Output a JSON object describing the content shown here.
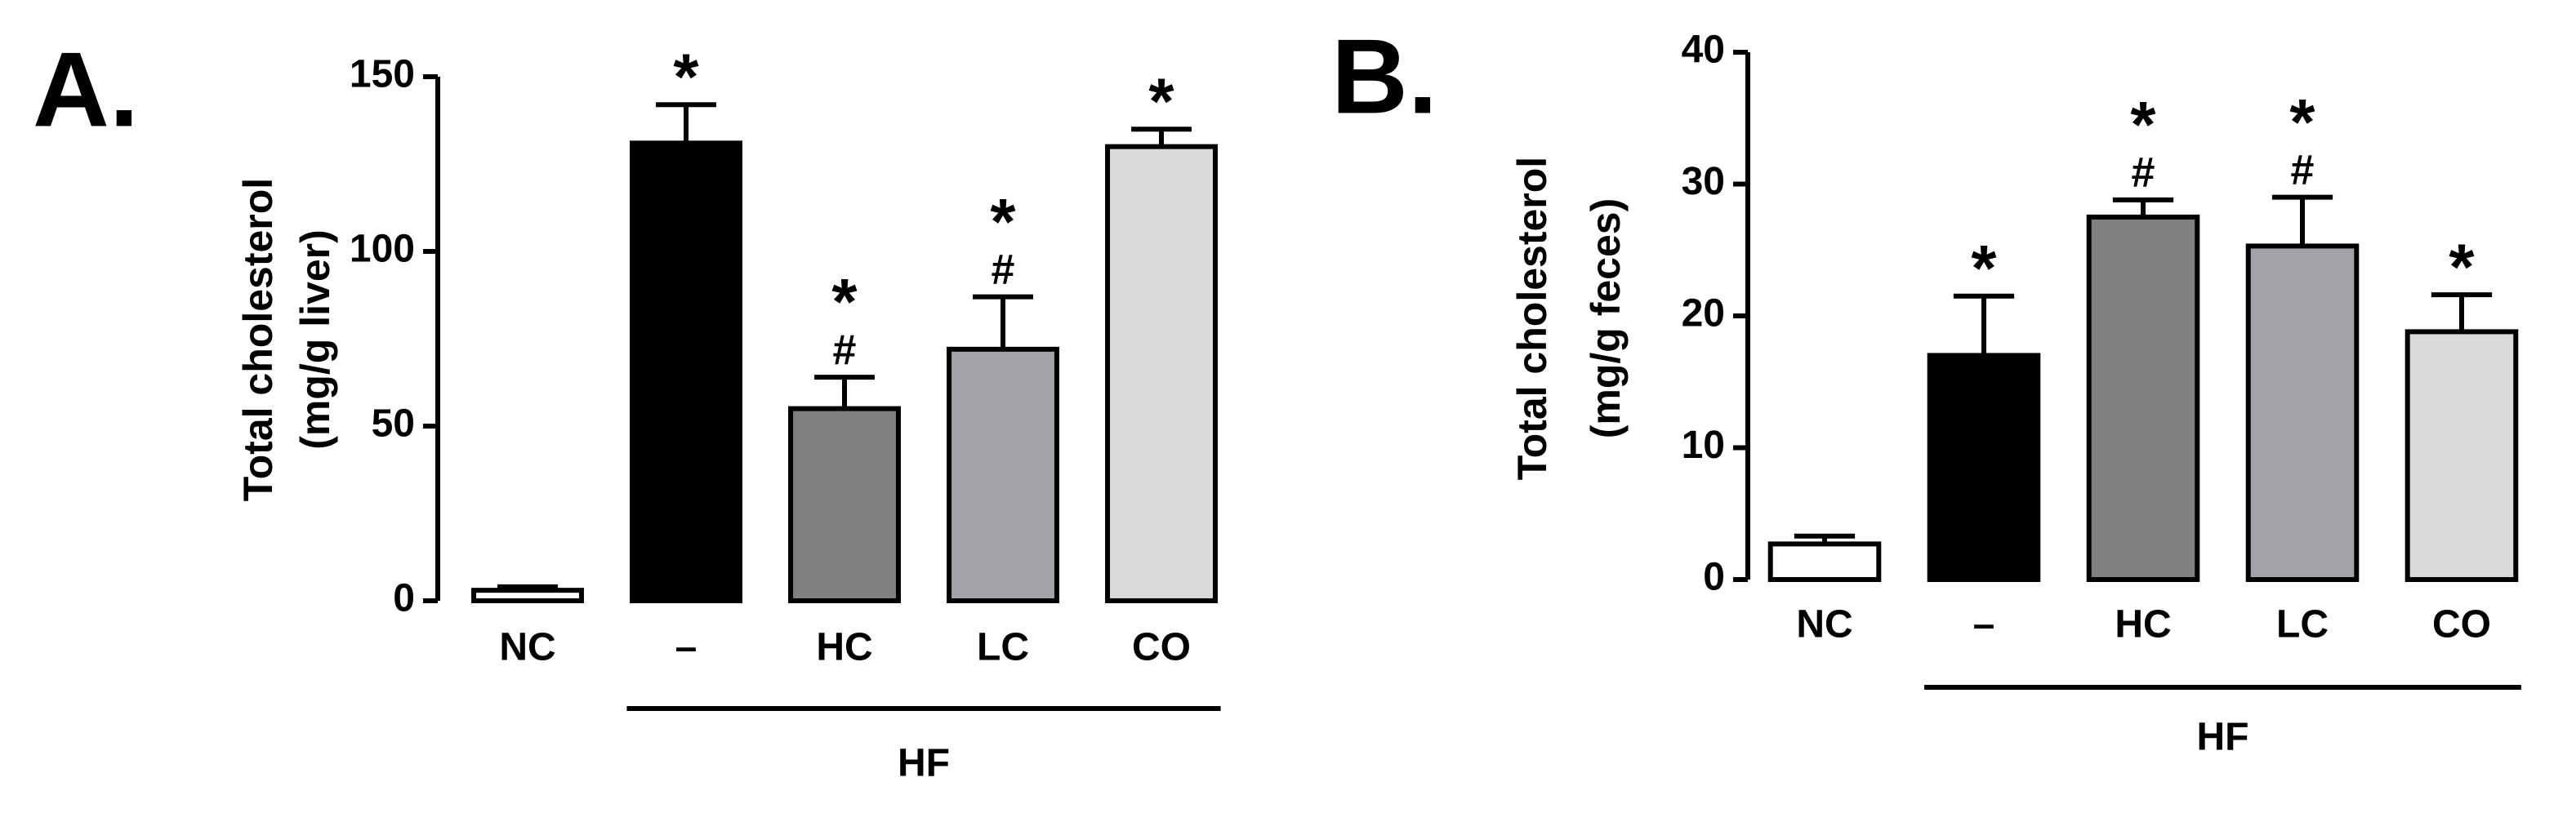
{
  "chart_data": [
    {
      "type": "bar",
      "panel_label": "A.",
      "ylabel": [
        "Total cholesterol",
        "(mg/g liver)"
      ],
      "categories": [
        "NC",
        "–",
        "HC",
        "LC",
        "CO"
      ],
      "values": [
        3,
        131,
        55,
        72,
        130
      ],
      "errors": [
        1,
        11,
        9,
        15,
        5
      ],
      "colors": [
        "#ffffff",
        "#000000",
        "#808080",
        "#a2a2a8",
        "#d9d9d9"
      ],
      "significance": [
        [],
        [
          "*"
        ],
        [
          "*",
          "#"
        ],
        [
          "*",
          "#"
        ],
        [
          "*"
        ]
      ],
      "group_label": "HF",
      "ylim": [
        0,
        150
      ],
      "yticks": [
        0,
        50,
        100,
        150
      ]
    },
    {
      "type": "bar",
      "panel_label": "B.",
      "ylabel": [
        "Total cholesterol",
        "(mg/g feces)"
      ],
      "categories": [
        "NC",
        "–",
        "HC",
        "LC",
        "CO"
      ],
      "values": [
        2.7,
        17,
        27.5,
        25.3,
        18.8
      ],
      "errors": [
        0.6,
        4.5,
        1.3,
        3.7,
        2.8
      ],
      "colors": [
        "#ffffff",
        "#000000",
        "#808080",
        "#a2a2a8",
        "#d9d9d9"
      ],
      "significance": [
        [],
        [
          "*"
        ],
        [
          "*",
          "#"
        ],
        [
          "*",
          "#"
        ],
        [
          "*"
        ]
      ],
      "group_label": "HF",
      "ylim": [
        0,
        40
      ],
      "yticks": [
        0,
        10,
        20,
        30,
        40
      ]
    }
  ]
}
